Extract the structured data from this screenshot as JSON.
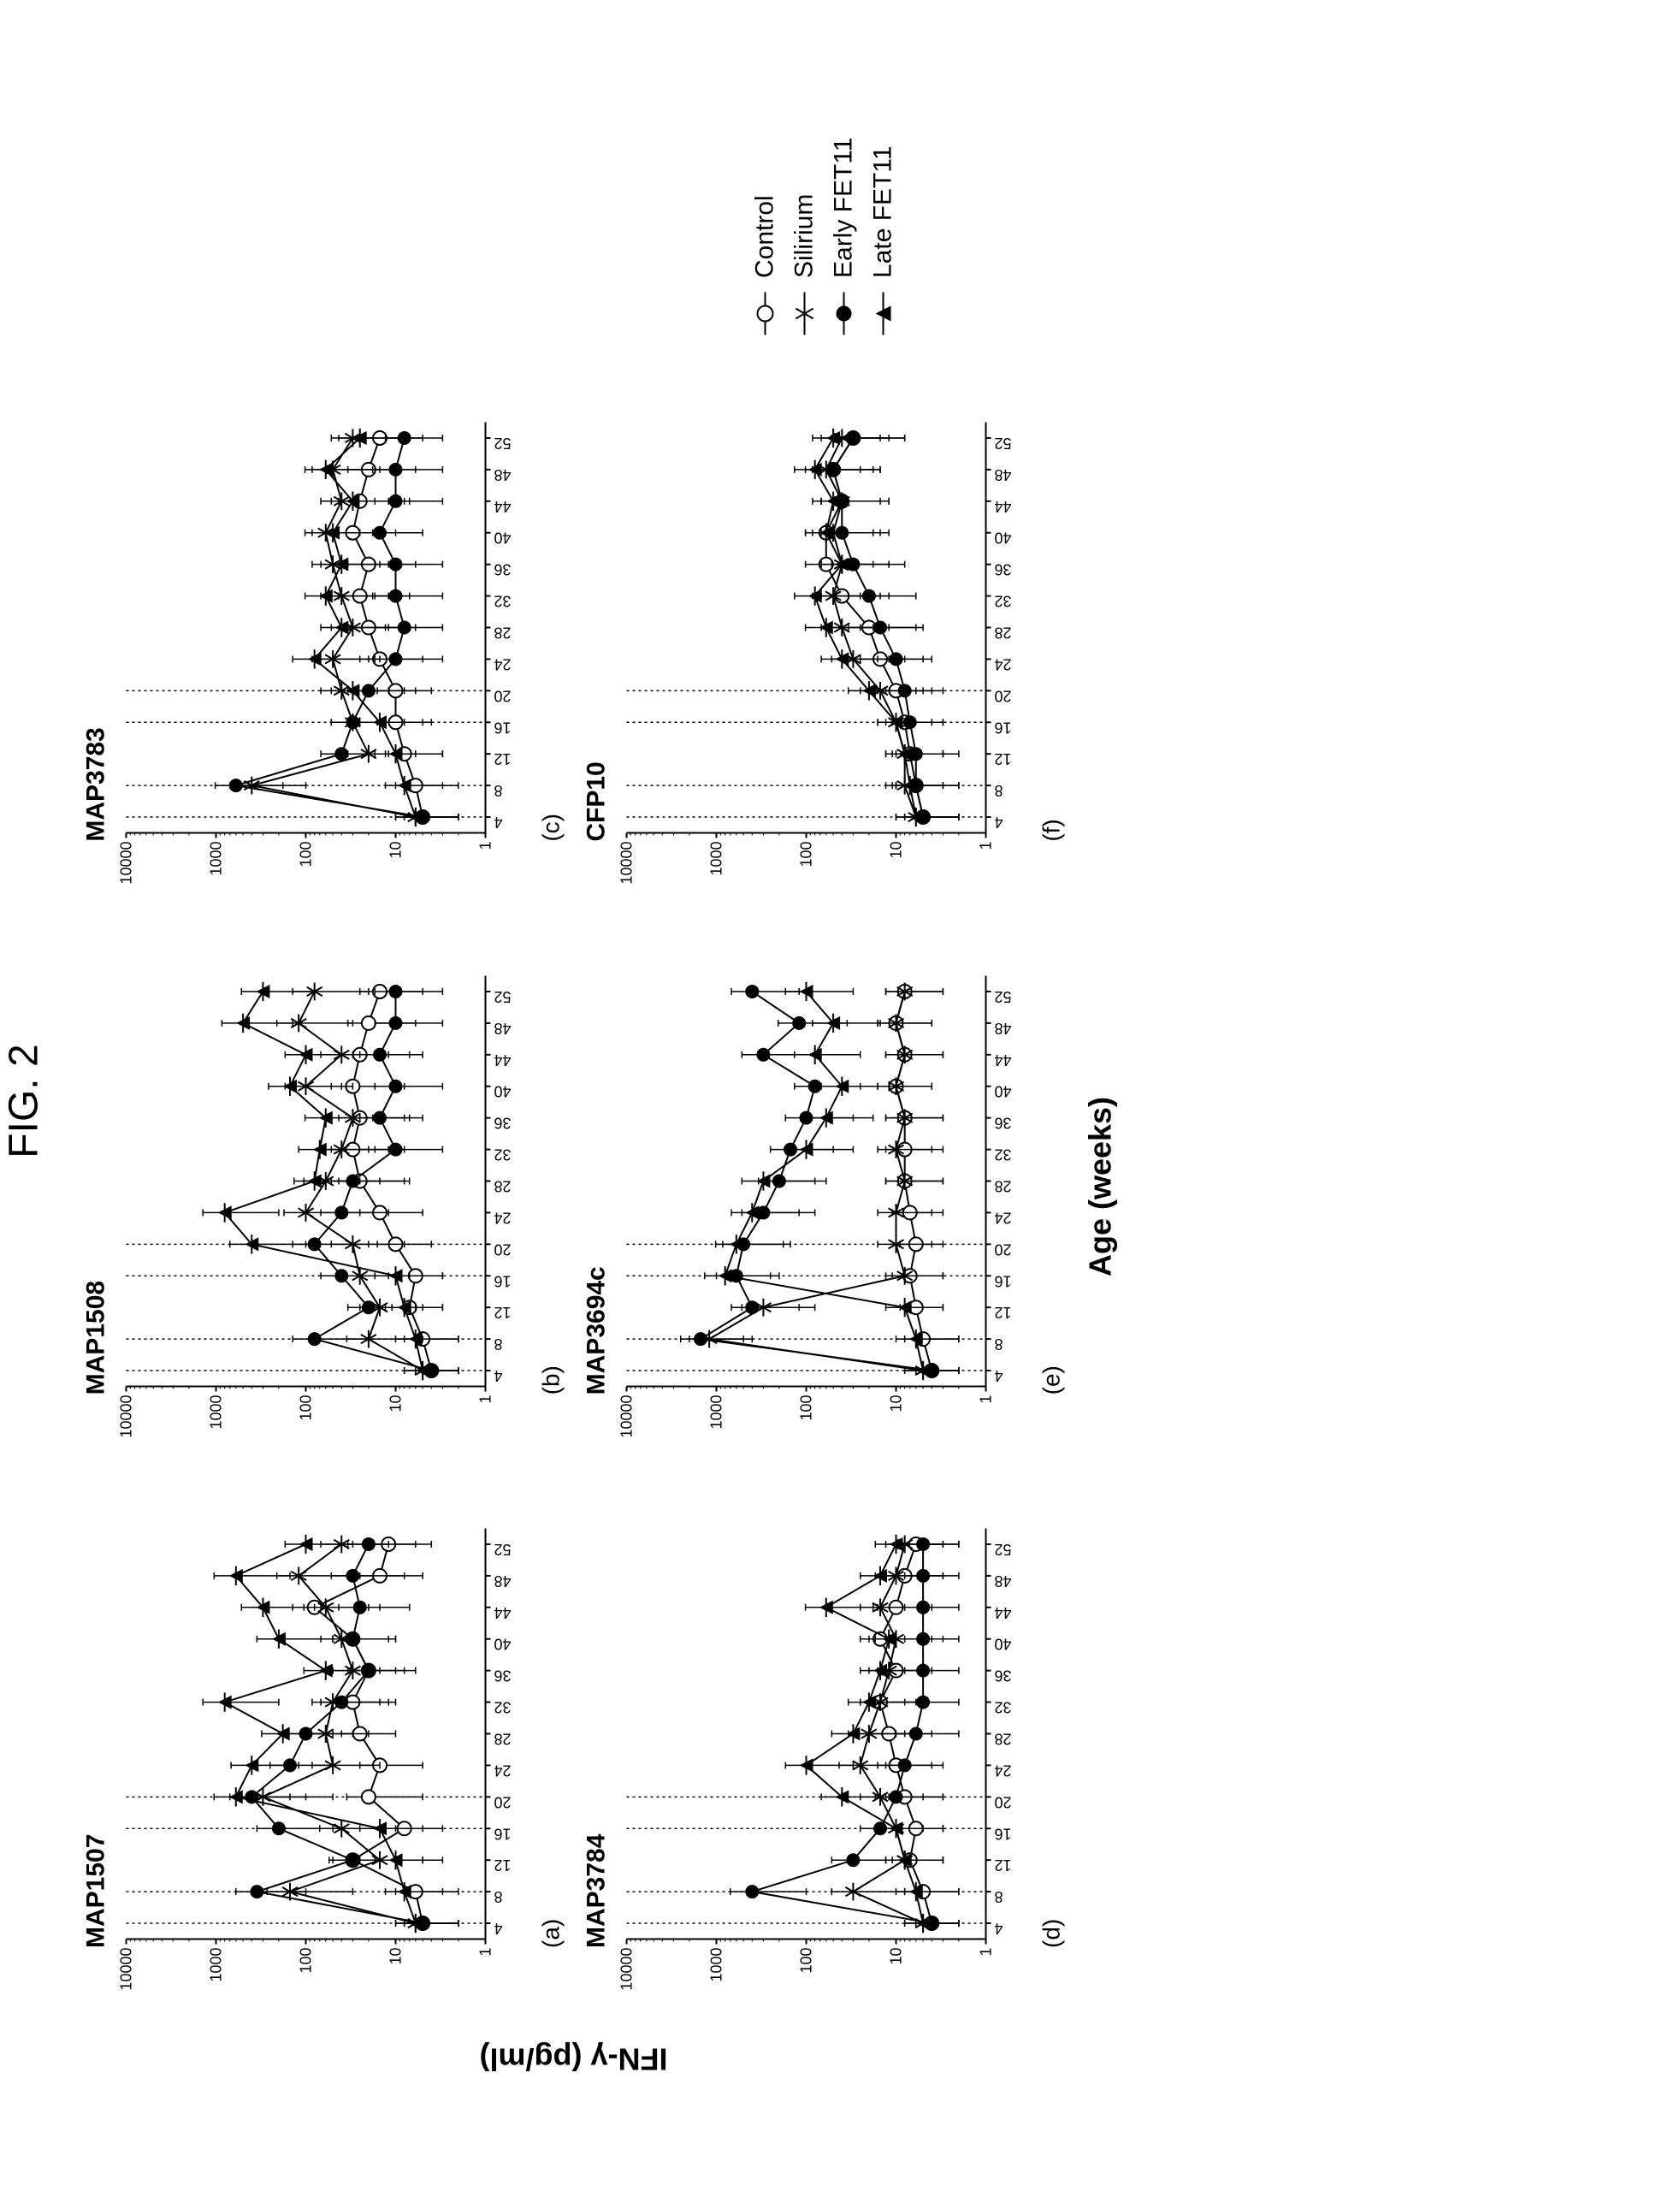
{
  "figure_title": "FIG. 2",
  "y_axis_label": "IFN-γ (pg/ml)",
  "x_axis_label": "Age (weeks)",
  "background_color": "#ffffff",
  "axis_color": "#000000",
  "series_color": "#000000",
  "dotted_line_color": "#000000",
  "y_ticks": [
    1,
    10,
    100,
    1000,
    10000
  ],
  "y_lim": [
    1,
    10000
  ],
  "y_scale": "log",
  "x_ticks": [
    4,
    8,
    12,
    16,
    20,
    24,
    28,
    32,
    36,
    40,
    44,
    48,
    52
  ],
  "x_lim": [
    2,
    54
  ],
  "vertical_dotted_lines": [
    4,
    8,
    16,
    20
  ],
  "tick_fontsize": 18,
  "title_fontsize": 30,
  "axis_label_fontsize": 36,
  "line_width": 2,
  "marker_size": 8,
  "errorbar_cap": 4,
  "legend": [
    {
      "label": "Control",
      "marker": "open-circle"
    },
    {
      "label": "Silirium",
      "marker": "asterisk"
    },
    {
      "label": "Early FET11",
      "marker": "filled-circle"
    },
    {
      "label": "Late FET11",
      "marker": "triangle-bar"
    }
  ],
  "panels": [
    {
      "id": "a",
      "title": "MAP1507",
      "row": 1,
      "col": 1,
      "series": {
        "Control": {
          "x": [
            4,
            8,
            12,
            16,
            20,
            24,
            28,
            32,
            36,
            40,
            44,
            48,
            52
          ],
          "y": [
            5,
            6,
            30,
            8,
            20,
            15,
            25,
            30,
            20,
            30,
            80,
            15,
            12
          ],
          "err": [
            3,
            4,
            25,
            5,
            15,
            10,
            15,
            20,
            12,
            20,
            60,
            10,
            8
          ]
        },
        "Silirium": {
          "x": [
            4,
            8,
            12,
            16,
            20,
            24,
            28,
            32,
            36,
            40,
            44,
            48,
            52
          ],
          "y": [
            6,
            150,
            15,
            40,
            300,
            50,
            60,
            50,
            30,
            40,
            60,
            120,
            40
          ],
          "err": [
            4,
            120,
            10,
            30,
            250,
            35,
            40,
            35,
            20,
            28,
            45,
            90,
            28
          ]
        },
        "Early FET11": {
          "x": [
            4,
            8,
            12,
            16,
            20,
            24,
            28,
            32,
            36,
            40,
            44,
            48,
            52
          ],
          "y": [
            5,
            350,
            30,
            200,
            400,
            150,
            100,
            40,
            20,
            30,
            25,
            30,
            20
          ],
          "err": [
            3,
            250,
            20,
            150,
            300,
            100,
            70,
            28,
            14,
            20,
            18,
            22,
            14
          ]
        },
        "Late FET11": {
          "x": [
            4,
            8,
            12,
            16,
            20,
            24,
            28,
            32,
            36,
            40,
            44,
            48,
            52
          ],
          "y": [
            6,
            8,
            10,
            15,
            600,
            400,
            180,
            800,
            60,
            200,
            300,
            600,
            100
          ],
          "err": [
            4,
            5,
            7,
            10,
            450,
            280,
            130,
            600,
            45,
            150,
            220,
            450,
            70
          ]
        }
      }
    },
    {
      "id": "b",
      "title": "MAP1508",
      "row": 1,
      "col": 2,
      "series": {
        "Control": {
          "x": [
            4,
            8,
            12,
            16,
            20,
            24,
            28,
            32,
            36,
            40,
            44,
            48,
            52
          ],
          "y": [
            4,
            5,
            7,
            6,
            10,
            15,
            25,
            30,
            25,
            30,
            25,
            20,
            15
          ],
          "err": [
            2,
            3,
            4,
            3,
            6,
            10,
            18,
            22,
            18,
            22,
            18,
            14,
            10
          ]
        },
        "Silirium": {
          "x": [
            4,
            8,
            12,
            16,
            20,
            24,
            28,
            32,
            36,
            40,
            44,
            48,
            52
          ],
          "y": [
            5,
            20,
            15,
            25,
            30,
            100,
            60,
            40,
            30,
            100,
            40,
            120,
            80
          ],
          "err": [
            3,
            15,
            10,
            18,
            22,
            75,
            45,
            28,
            22,
            70,
            28,
            90,
            60
          ]
        },
        "Early FET11": {
          "x": [
            4,
            8,
            12,
            16,
            20,
            24,
            28,
            32,
            36,
            40,
            44,
            48,
            52
          ],
          "y": [
            4,
            80,
            20,
            40,
            80,
            40,
            30,
            10,
            15,
            10,
            15,
            10,
            10
          ],
          "err": [
            2,
            60,
            14,
            28,
            60,
            28,
            22,
            7,
            10,
            7,
            10,
            7,
            7
          ]
        },
        "Late FET11": {
          "x": [
            4,
            8,
            12,
            16,
            20,
            24,
            28,
            32,
            36,
            40,
            44,
            48,
            52
          ],
          "y": [
            5,
            6,
            8,
            10,
            400,
            800,
            80,
            70,
            60,
            150,
            100,
            500,
            300
          ],
          "err": [
            3,
            4,
            5,
            7,
            300,
            600,
            55,
            50,
            42,
            110,
            70,
            360,
            220
          ]
        }
      }
    },
    {
      "id": "c",
      "title": "MAP3783",
      "row": 1,
      "col": 3,
      "series": {
        "Control": {
          "x": [
            4,
            8,
            12,
            16,
            20,
            24,
            28,
            32,
            36,
            40,
            44,
            48,
            52
          ],
          "y": [
            5,
            6,
            8,
            10,
            10,
            15,
            20,
            25,
            20,
            30,
            25,
            20,
            15
          ],
          "err": [
            3,
            4,
            5,
            6,
            6,
            10,
            14,
            18,
            14,
            20,
            18,
            14,
            10
          ]
        },
        "Silirium": {
          "x": [
            4,
            8,
            12,
            16,
            20,
            24,
            28,
            32,
            36,
            40,
            44,
            48,
            52
          ],
          "y": [
            6,
            400,
            20,
            30,
            40,
            50,
            30,
            40,
            50,
            60,
            40,
            50,
            30
          ],
          "err": [
            4,
            300,
            14,
            22,
            28,
            35,
            22,
            28,
            35,
            42,
            28,
            35,
            22
          ]
        },
        "Early FET11": {
          "x": [
            4,
            8,
            12,
            16,
            20,
            24,
            28,
            32,
            36,
            40,
            44,
            48,
            52
          ],
          "y": [
            5,
            600,
            40,
            30,
            20,
            10,
            8,
            10,
            10,
            15,
            10,
            10,
            8
          ],
          "err": [
            3,
            420,
            28,
            22,
            14,
            7,
            5,
            7,
            7,
            10,
            7,
            7,
            5
          ]
        },
        "Late FET11": {
          "x": [
            4,
            8,
            12,
            16,
            20,
            24,
            28,
            32,
            36,
            40,
            44,
            48,
            52
          ],
          "y": [
            6,
            8,
            10,
            15,
            30,
            80,
            40,
            60,
            40,
            50,
            30,
            60,
            25
          ],
          "err": [
            4,
            5,
            7,
            10,
            22,
            60,
            28,
            42,
            28,
            35,
            22,
            42,
            18
          ]
        }
      }
    },
    {
      "id": "d",
      "title": "MAP3784",
      "row": 2,
      "col": 1,
      "series": {
        "Control": {
          "x": [
            4,
            8,
            12,
            16,
            20,
            24,
            28,
            32,
            36,
            40,
            44,
            48,
            52
          ],
          "y": [
            4,
            5,
            7,
            6,
            8,
            10,
            12,
            15,
            10,
            15,
            10,
            8,
            6
          ],
          "err": [
            2,
            3,
            4,
            3,
            5,
            6,
            8,
            10,
            6,
            10,
            6,
            5,
            4
          ]
        },
        "Silirium": {
          "x": [
            4,
            8,
            12,
            16,
            20,
            24,
            28,
            32,
            36,
            40,
            44,
            48,
            52
          ],
          "y": [
            5,
            30,
            8,
            10,
            15,
            25,
            20,
            15,
            12,
            10,
            15,
            10,
            8
          ],
          "err": [
            3,
            22,
            5,
            7,
            10,
            18,
            14,
            10,
            8,
            7,
            10,
            7,
            5
          ]
        },
        "Early FET11": {
          "x": [
            4,
            8,
            12,
            16,
            20,
            24,
            28,
            32,
            36,
            40,
            44,
            48,
            52
          ],
          "y": [
            4,
            400,
            30,
            15,
            10,
            8,
            6,
            5,
            5,
            5,
            5,
            5,
            5
          ],
          "err": [
            2,
            300,
            22,
            10,
            7,
            5,
            4,
            3,
            3,
            3,
            3,
            3,
            3
          ]
        },
        "Late FET11": {
          "x": [
            4,
            8,
            12,
            16,
            20,
            24,
            28,
            32,
            36,
            40,
            44,
            48,
            52
          ],
          "y": [
            5,
            6,
            8,
            10,
            40,
            100,
            30,
            20,
            15,
            12,
            60,
            15,
            10
          ],
          "err": [
            3,
            4,
            5,
            7,
            28,
            70,
            22,
            14,
            10,
            8,
            42,
            10,
            7
          ]
        }
      }
    },
    {
      "id": "e",
      "title": "MAP3694c",
      "row": 2,
      "col": 2,
      "series": {
        "Control": {
          "x": [
            4,
            8,
            12,
            16,
            20,
            24,
            28,
            32,
            36,
            40,
            44,
            48,
            52
          ],
          "y": [
            4,
            5,
            6,
            7,
            6,
            7,
            8,
            8,
            8,
            10,
            8,
            10,
            8
          ],
          "err": [
            2,
            3,
            3,
            4,
            3,
            4,
            5,
            5,
            5,
            6,
            5,
            6,
            5
          ]
        },
        "Silirium": {
          "x": [
            4,
            8,
            12,
            16,
            20,
            24,
            28,
            32,
            36,
            40,
            44,
            48,
            52
          ],
          "y": [
            5,
            1200,
            300,
            8,
            10,
            10,
            8,
            10,
            8,
            10,
            8,
            10,
            8
          ],
          "err": [
            3,
            800,
            220,
            5,
            6,
            6,
            5,
            6,
            5,
            6,
            5,
            6,
            5
          ]
        },
        "Early FET11": {
          "x": [
            4,
            8,
            12,
            16,
            20,
            24,
            28,
            32,
            36,
            40,
            44,
            48,
            52
          ],
          "y": [
            4,
            1500,
            400,
            600,
            500,
            300,
            200,
            150,
            100,
            80,
            300,
            120,
            400
          ],
          "err": [
            2,
            1000,
            280,
            400,
            350,
            220,
            140,
            100,
            70,
            55,
            220,
            85,
            280
          ]
        },
        "Late FET11": {
          "x": [
            4,
            8,
            12,
            16,
            20,
            24,
            28,
            32,
            36,
            40,
            44,
            48,
            52
          ],
          "y": [
            5,
            6,
            8,
            800,
            600,
            400,
            300,
            100,
            60,
            40,
            80,
            50,
            100
          ],
          "err": [
            3,
            4,
            5,
            550,
            420,
            280,
            220,
            70,
            42,
            28,
            55,
            35,
            70
          ]
        }
      }
    },
    {
      "id": "f",
      "title": "CFP10",
      "row": 2,
      "col": 3,
      "series": {
        "Control": {
          "x": [
            4,
            8,
            12,
            16,
            20,
            24,
            28,
            32,
            36,
            40,
            44,
            48,
            52
          ],
          "y": [
            5,
            6,
            7,
            8,
            10,
            15,
            20,
            40,
            60,
            60,
            40,
            50,
            30
          ],
          "err": [
            3,
            4,
            4,
            5,
            6,
            10,
            14,
            28,
            42,
            42,
            28,
            35,
            22
          ]
        },
        "Silirium": {
          "x": [
            4,
            8,
            12,
            16,
            20,
            24,
            28,
            32,
            36,
            40,
            44,
            48,
            52
          ],
          "y": [
            6,
            8,
            8,
            10,
            15,
            30,
            40,
            50,
            40,
            50,
            40,
            60,
            40
          ],
          "err": [
            4,
            5,
            5,
            6,
            10,
            22,
            28,
            35,
            28,
            35,
            28,
            42,
            28
          ]
        },
        "Early FET11": {
          "x": [
            4,
            8,
            12,
            16,
            20,
            24,
            28,
            32,
            36,
            40,
            44,
            48,
            52
          ],
          "y": [
            5,
            6,
            6,
            7,
            8,
            10,
            15,
            20,
            30,
            40,
            40,
            50,
            30
          ],
          "err": [
            3,
            4,
            4,
            4,
            5,
            6,
            10,
            14,
            22,
            28,
            28,
            35,
            22
          ]
        },
        "Late FET11": {
          "x": [
            4,
            8,
            12,
            16,
            20,
            24,
            28,
            32,
            36,
            40,
            44,
            48,
            52
          ],
          "y": [
            6,
            7,
            8,
            10,
            20,
            40,
            60,
            80,
            40,
            60,
            50,
            80,
            50
          ],
          "err": [
            4,
            4,
            5,
            6,
            14,
            28,
            42,
            55,
            28,
            42,
            35,
            55,
            35
          ]
        }
      }
    }
  ]
}
